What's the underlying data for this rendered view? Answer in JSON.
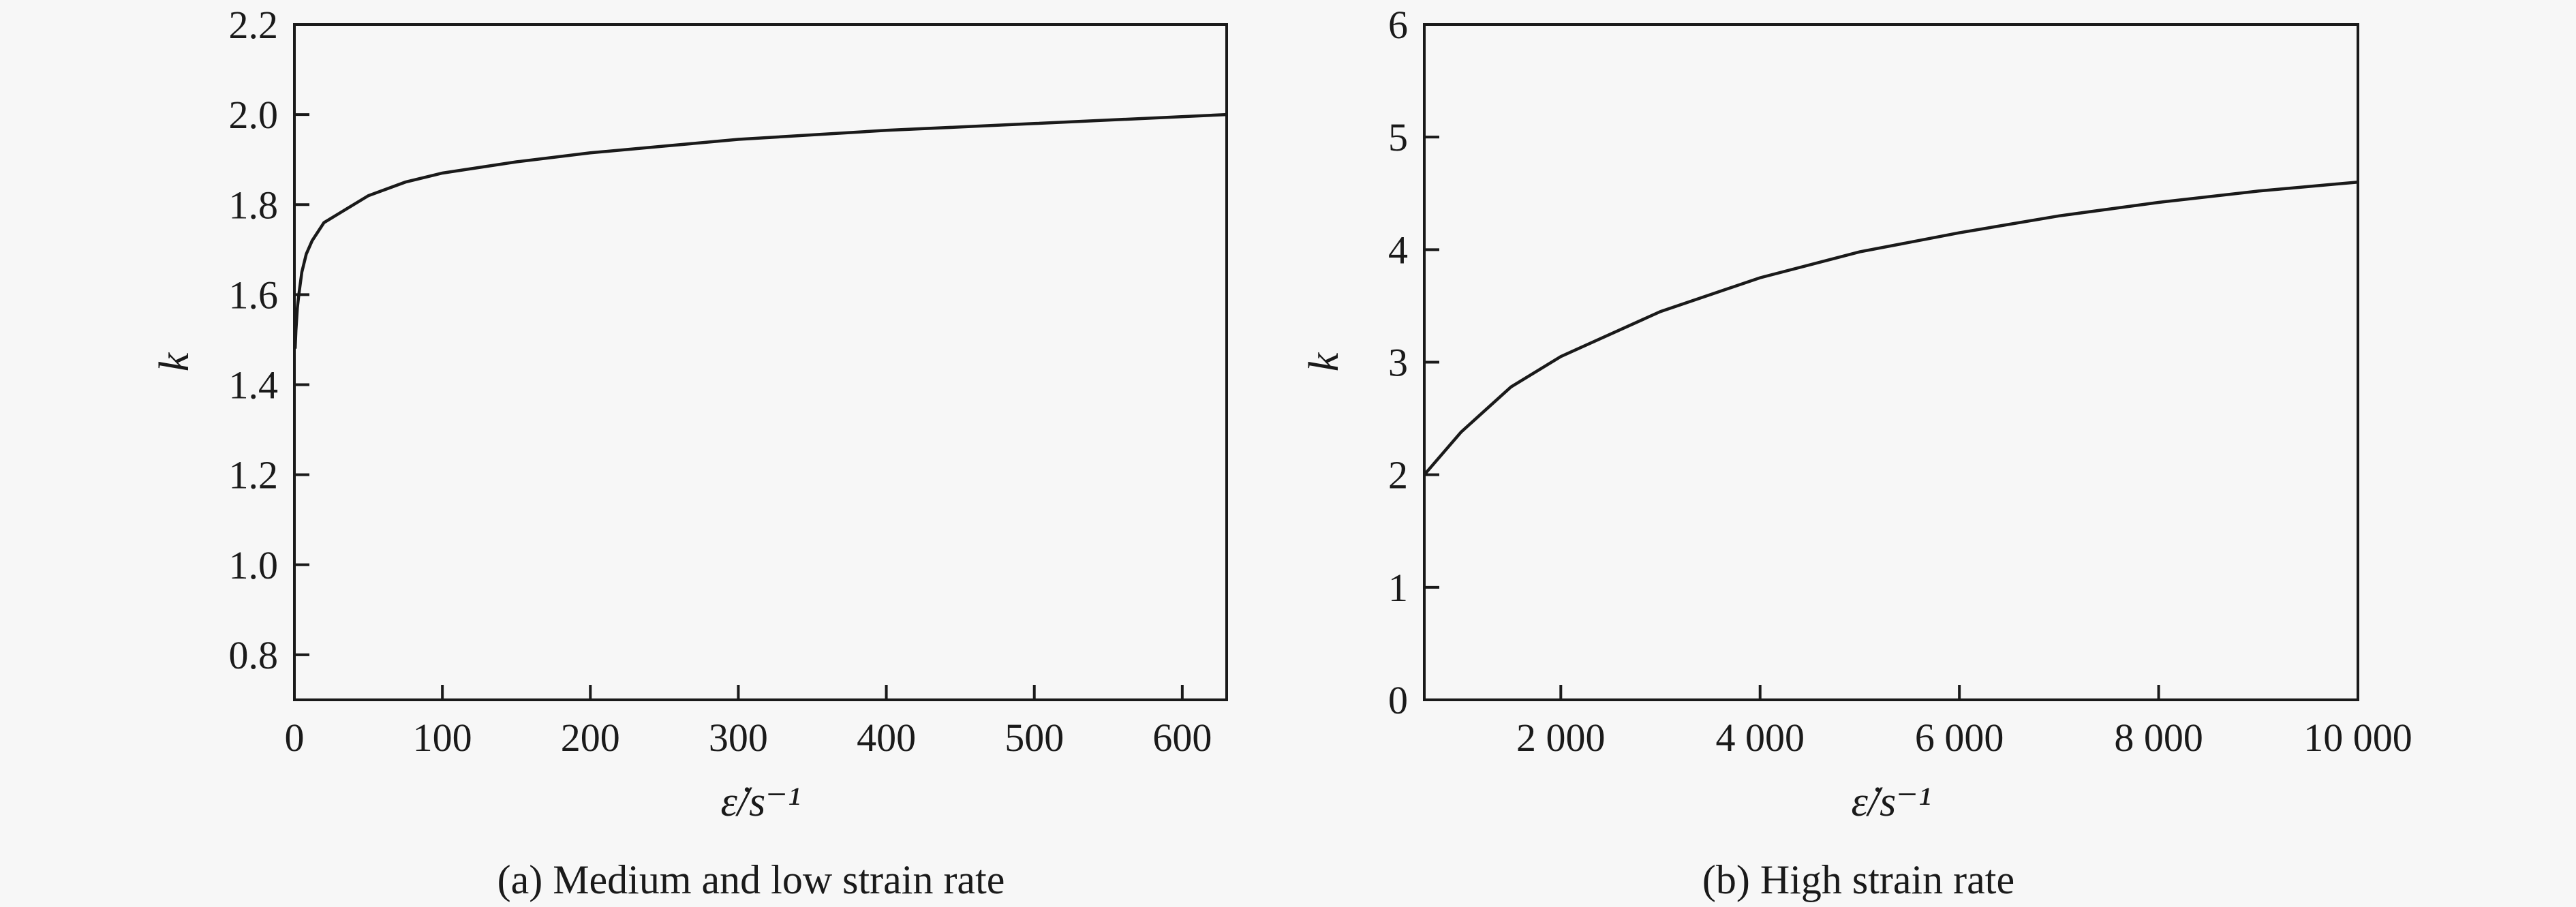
{
  "chart_data": [
    {
      "type": "line",
      "panel": "a",
      "caption": "(a) Medium and low strain rate",
      "xlabel": "ε̇/s⁻¹",
      "ylabel": "k",
      "xlim": [
        0,
        630
      ],
      "ylim": [
        0.7,
        2.2
      ],
      "xticks": [
        0,
        100,
        200,
        300,
        400,
        500,
        600
      ],
      "xtick_labels": [
        "0",
        "100",
        "200",
        "300",
        "400",
        "500",
        "600"
      ],
      "yticks": [
        0.8,
        1.0,
        1.2,
        1.4,
        1.6,
        1.8,
        2.0,
        2.2
      ],
      "ytick_labels": [
        "0.8",
        "1.0",
        "1.2",
        "1.4",
        "1.6",
        "1.8",
        "2.0",
        "2.2"
      ],
      "grid": false,
      "series": [
        {
          "x": [
            0.5,
            1,
            2,
            3,
            5,
            8,
            12,
            20,
            30,
            50,
            75,
            100,
            150,
            200,
            250,
            300,
            400,
            500,
            630
          ],
          "y": [
            1.48,
            1.52,
            1.57,
            1.6,
            1.65,
            1.69,
            1.72,
            1.76,
            1.78,
            1.82,
            1.85,
            1.87,
            1.895,
            1.915,
            1.93,
            1.945,
            1.965,
            1.98,
            2.0
          ]
        }
      ]
    },
    {
      "type": "line",
      "panel": "b",
      "caption": "(b) High strain rate",
      "xlabel": "ε̇/s⁻¹",
      "ylabel": "k",
      "xlim": [
        630,
        10000
      ],
      "ylim": [
        0,
        6
      ],
      "xticks": [
        2000,
        4000,
        6000,
        8000,
        10000
      ],
      "xtick_labels": [
        "2 000",
        "4 000",
        "6 000",
        "8 000",
        "10 000"
      ],
      "yticks": [
        0,
        1,
        2,
        3,
        4,
        5,
        6
      ],
      "ytick_labels": [
        "0",
        "1",
        "2",
        "3",
        "4",
        "5",
        "6"
      ],
      "grid": false,
      "series": [
        {
          "x": [
            630,
            1000,
            1500,
            2000,
            3000,
            4000,
            5000,
            6000,
            7000,
            8000,
            9000,
            10000
          ],
          "y": [
            2.0,
            2.38,
            2.78,
            3.05,
            3.45,
            3.75,
            3.98,
            4.15,
            4.3,
            4.42,
            4.52,
            4.6
          ]
        }
      ]
    }
  ]
}
